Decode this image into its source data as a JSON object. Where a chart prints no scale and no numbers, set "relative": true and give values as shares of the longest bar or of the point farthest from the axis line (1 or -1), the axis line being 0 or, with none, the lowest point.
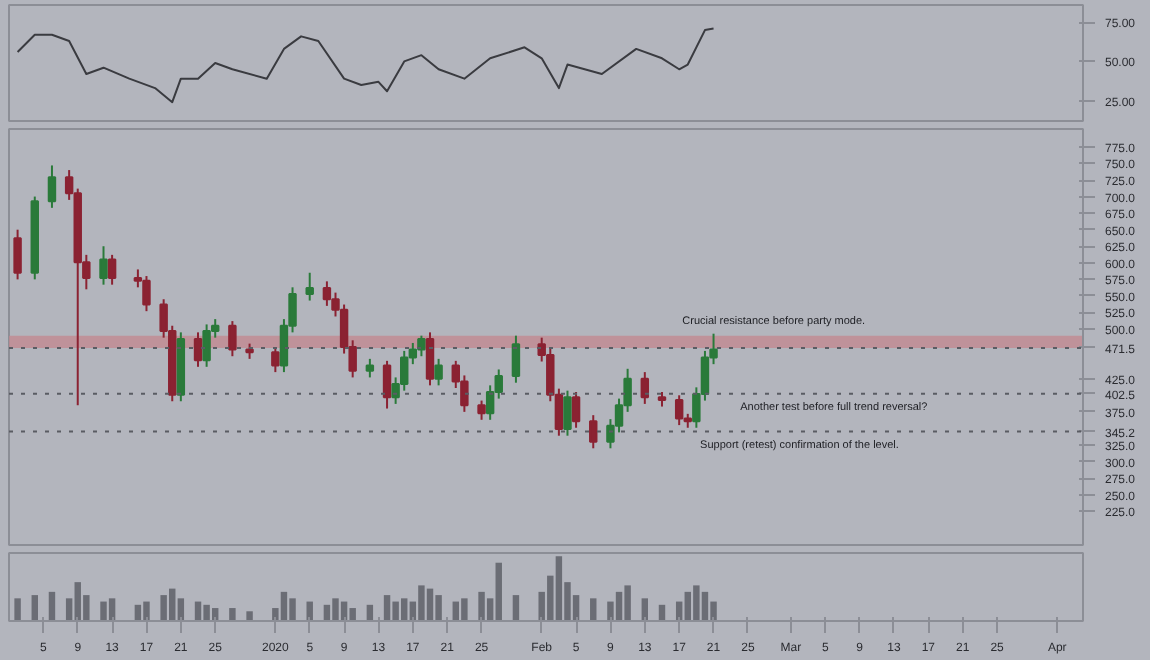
{
  "chart_data": [
    {
      "type": "line",
      "x": [
        "2019-12-02",
        "2019-12-04",
        "2019-12-06",
        "2019-12-08",
        "2019-12-10",
        "2019-12-12",
        "2019-12-15",
        "2019-12-18",
        "2019-12-20",
        "2019-12-21",
        "2019-12-23",
        "2019-12-25",
        "2019-12-27",
        "2019-12-31",
        "2020-01-02",
        "2020-01-04",
        "2020-01-06",
        "2020-01-09",
        "2020-01-11",
        "2020-01-13",
        "2020-01-14",
        "2020-01-16",
        "2020-01-18",
        "2020-01-20",
        "2020-01-23",
        "2020-01-26",
        "2020-01-30",
        "2020-02-01",
        "2020-02-03",
        "2020-02-04",
        "2020-02-08",
        "2020-02-12",
        "2020-02-15",
        "2020-02-17",
        "2020-02-18",
        "2020-02-20",
        "2020-02-21"
      ],
      "series": [
        {
          "color": "#3a3b40",
          "values": [
            56,
            67,
            67,
            63,
            42,
            46,
            39,
            33,
            24,
            39,
            39,
            49,
            45,
            39,
            58,
            66,
            63,
            39,
            35,
            37,
            31,
            50,
            54,
            45,
            39,
            52,
            59,
            52,
            33,
            48,
            42,
            58,
            52,
            45,
            48,
            70,
            71
          ]
        }
      ],
      "xlim": [
        "2019-12-01",
        "2020-04-04"
      ],
      "ylim": [
        12,
        86
      ],
      "yticks": [
        {
          "value": 25,
          "label": "25.00"
        },
        {
          "value": 50,
          "label": "50.00"
        },
        {
          "value": 75,
          "label": "75.00"
        }
      ],
      "tick_labels": "y",
      "grid": false
    },
    {
      "type": "candlestick",
      "x": [
        "2019-12-02",
        "2019-12-04",
        "2019-12-06",
        "2019-12-08",
        "2019-12-09",
        "2019-12-10",
        "2019-12-12",
        "2019-12-13",
        "2019-12-16",
        "2019-12-17",
        "2019-12-19",
        "2019-12-20",
        "2019-12-21",
        "2019-12-23",
        "2019-12-24",
        "2019-12-25",
        "2019-12-27",
        "2019-12-29",
        "2020-01-01",
        "2020-01-02",
        "2020-01-03",
        "2020-01-05",
        "2020-01-07",
        "2020-01-08",
        "2020-01-09",
        "2020-01-10",
        "2020-01-12",
        "2020-01-14",
        "2020-01-15",
        "2020-01-16",
        "2020-01-17",
        "2020-01-18",
        "2020-01-19",
        "2020-01-20",
        "2020-01-22",
        "2020-01-23",
        "2020-01-25",
        "2020-01-26",
        "2020-01-27",
        "2020-01-29",
        "2020-02-01",
        "2020-02-02",
        "2020-02-03",
        "2020-02-04",
        "2020-02-05",
        "2020-02-07",
        "2020-02-09",
        "2020-02-10",
        "2020-02-11",
        "2020-02-13",
        "2020-02-15",
        "2020-02-17",
        "2020-02-18",
        "2020-02-19",
        "2020-02-20",
        "2020-02-21"
      ],
      "ohlc": [
        [
          637,
          650,
          575,
          585
        ],
        [
          585,
          700,
          575,
          693
        ],
        [
          693,
          747,
          683,
          729
        ],
        [
          729,
          740,
          695,
          705
        ],
        [
          705,
          712,
          385,
          601
        ],
        [
          601,
          612,
          560,
          577
        ],
        [
          577,
          625,
          567,
          605
        ],
        [
          605,
          612,
          567,
          577
        ],
        [
          577,
          590,
          563,
          573
        ],
        [
          573,
          580,
          527,
          537
        ],
        [
          537,
          545,
          487,
          497
        ],
        [
          497,
          505,
          391,
          401
        ],
        [
          401,
          495,
          391,
          485
        ],
        [
          485,
          495,
          443,
          453
        ],
        [
          453,
          507,
          443,
          497
        ],
        [
          497,
          515,
          487,
          505
        ],
        [
          505,
          512,
          459,
          469
        ],
        [
          469,
          478,
          455,
          465
        ],
        [
          465,
          472,
          435,
          445
        ],
        [
          445,
          515,
          435,
          505
        ],
        [
          505,
          563,
          495,
          553
        ],
        [
          553,
          585,
          543,
          562
        ],
        [
          562,
          572,
          535,
          545
        ],
        [
          545,
          555,
          519,
          529
        ],
        [
          529,
          537,
          463,
          473
        ],
        [
          473,
          483,
          427,
          437
        ],
        [
          437,
          455,
          427,
          445
        ],
        [
          445,
          452,
          380,
          397
        ],
        [
          397,
          427,
          387,
          417
        ],
        [
          417,
          467,
          407,
          457
        ],
        [
          457,
          479,
          447,
          469
        ],
        [
          469,
          490,
          459,
          485
        ],
        [
          485,
          495,
          415,
          425
        ],
        [
          425,
          455,
          415,
          445
        ],
        [
          445,
          452,
          411,
          421
        ],
        [
          421,
          430,
          375,
          385
        ],
        [
          385,
          392,
          363,
          373
        ],
        [
          373,
          415,
          363,
          405
        ],
        [
          405,
          439,
          395,
          429
        ],
        [
          429,
          490,
          419,
          477
        ],
        [
          477,
          487,
          451,
          461
        ],
        [
          461,
          470,
          391,
          401
        ],
        [
          401,
          410,
          339,
          349
        ],
        [
          349,
          407,
          339,
          397
        ],
        [
          397,
          405,
          351,
          361
        ],
        [
          361,
          370,
          320,
          330
        ],
        [
          330,
          364,
          320,
          354
        ],
        [
          354,
          395,
          344,
          385
        ],
        [
          385,
          440,
          375,
          425
        ],
        [
          425,
          435,
          387,
          397
        ],
        [
          397,
          405,
          383,
          393
        ],
        [
          393,
          400,
          355,
          365
        ],
        [
          365,
          372,
          351,
          361
        ],
        [
          361,
          412,
          351,
          402
        ],
        [
          402,
          467,
          392,
          457
        ],
        [
          457,
          493,
          447,
          469
        ]
      ],
      "colors": [
        "#8b2232",
        "#2a7a3a",
        "#2a7a3a",
        "#8b2232",
        "#8b2232",
        "#8b2232",
        "#2a7a3a",
        "#8b2232",
        "#8b2232",
        "#8b2232",
        "#8b2232",
        "#8b2232",
        "#2a7a3a",
        "#8b2232",
        "#2a7a3a",
        "#2a7a3a",
        "#8b2232",
        "#8b2232",
        "#8b2232",
        "#2a7a3a",
        "#2a7a3a",
        "#2a7a3a",
        "#8b2232",
        "#8b2232",
        "#8b2232",
        "#8b2232",
        "#2a7a3a",
        "#8b2232",
        "#2a7a3a",
        "#2a7a3a",
        "#2a7a3a",
        "#2a7a3a",
        "#8b2232",
        "#2a7a3a",
        "#8b2232",
        "#8b2232",
        "#8b2232",
        "#2a7a3a",
        "#2a7a3a",
        "#2a7a3a",
        "#8b2232",
        "#8b2232",
        "#8b2232",
        "#2a7a3a",
        "#8b2232",
        "#8b2232",
        "#2a7a3a",
        "#2a7a3a",
        "#2a7a3a",
        "#8b2232",
        "#8b2232",
        "#8b2232",
        "#8b2232",
        "#2a7a3a",
        "#2a7a3a",
        "#2a7a3a"
      ],
      "xlim": [
        "2019-12-01",
        "2020-04-04"
      ],
      "ylim": [
        174,
        802
      ],
      "yticks": [
        {
          "value": 225,
          "label": "225.0"
        },
        {
          "value": 250,
          "label": "250.0"
        },
        {
          "value": 275,
          "label": "275.0"
        },
        {
          "value": 300,
          "label": "300.0"
        },
        {
          "value": 325,
          "label": "325.0"
        },
        {
          "value": 375,
          "label": "375.0"
        },
        {
          "value": 425,
          "label": "425.0"
        },
        {
          "value": 500,
          "label": "500.0"
        },
        {
          "value": 525,
          "label": "525.0"
        },
        {
          "value": 550,
          "label": "550.0"
        },
        {
          "value": 575,
          "label": "575.0"
        },
        {
          "value": 600,
          "label": "600.0"
        },
        {
          "value": 625,
          "label": "625.0"
        },
        {
          "value": 650,
          "label": "650.0"
        },
        {
          "value": 675,
          "label": "675.0"
        },
        {
          "value": 700,
          "label": "700.0"
        },
        {
          "value": 725,
          "label": "725.0"
        },
        {
          "value": 750,
          "label": "750.0"
        },
        {
          "value": 775,
          "label": "775.0"
        }
      ],
      "bands": [
        {
          "axis": "y",
          "from": 471.5,
          "to": 490,
          "color": "#c3878f"
        }
      ],
      "ref_lines": [
        {
          "axis": "y",
          "value": 471.5,
          "label": "471.5",
          "line_style": "dotted",
          "color": "#5a5c63"
        },
        {
          "axis": "y",
          "value": 402.5,
          "label": "402.5",
          "line_style": "dotted",
          "color": "#5a5c63"
        },
        {
          "axis": "y",
          "value": 345.2,
          "label": "345.2",
          "line_style": "dotted",
          "color": "#5a5c63"
        }
      ],
      "annotations": [
        {
          "text": "Crucial resistance before party mode.",
          "x": "2020-02-28",
          "y": 490
        },
        {
          "text": "Another test before full trend reversal?",
          "x": "2020-03-06",
          "y": 402.5
        },
        {
          "text": "Support (retest) confirmation of the level.",
          "x": "2020-03-02",
          "y": 345.2
        }
      ],
      "tick_labels": "y",
      "grid": false
    },
    {
      "type": "bar",
      "relative": true,
      "color": "#6b6d75",
      "x": [
        "2019-12-02",
        "2019-12-04",
        "2019-12-06",
        "2019-12-08",
        "2019-12-09",
        "2019-12-10",
        "2019-12-12",
        "2019-12-13",
        "2019-12-16",
        "2019-12-17",
        "2019-12-19",
        "2019-12-20",
        "2019-12-21",
        "2019-12-23",
        "2019-12-24",
        "2019-12-25",
        "2019-12-27",
        "2019-12-29",
        "2020-01-01",
        "2020-01-02",
        "2020-01-03",
        "2020-01-05",
        "2020-01-07",
        "2020-01-08",
        "2020-01-09",
        "2020-01-10",
        "2020-01-12",
        "2020-01-14",
        "2020-01-15",
        "2020-01-16",
        "2020-01-17",
        "2020-01-18",
        "2020-01-19",
        "2020-01-20",
        "2020-01-22",
        "2020-01-23",
        "2020-01-25",
        "2020-01-26",
        "2020-01-27",
        "2020-01-29",
        "2020-02-01",
        "2020-02-02",
        "2020-02-03",
        "2020-02-04",
        "2020-02-05",
        "2020-02-07",
        "2020-02-09",
        "2020-02-10",
        "2020-02-11",
        "2020-02-13",
        "2020-02-15",
        "2020-02-17",
        "2020-02-18",
        "2020-02-19",
        "2020-02-20",
        "2020-02-21"
      ],
      "values": [
        0.35,
        0.4,
        0.45,
        0.35,
        0.6,
        0.4,
        0.3,
        0.35,
        0.25,
        0.3,
        0.4,
        0.5,
        0.35,
        0.3,
        0.25,
        0.2,
        0.2,
        0.15,
        0.2,
        0.45,
        0.35,
        0.3,
        0.25,
        0.35,
        0.3,
        0.2,
        0.25,
        0.4,
        0.3,
        0.35,
        0.3,
        0.55,
        0.5,
        0.4,
        0.3,
        0.35,
        0.45,
        0.35,
        0.9,
        0.4,
        0.45,
        0.7,
        1,
        0.6,
        0.4,
        0.35,
        0.3,
        0.45,
        0.55,
        0.35,
        0.25,
        0.3,
        0.45,
        0.55,
        0.45,
        0.3
      ],
      "xlim": [
        "2019-12-01",
        "2020-04-04"
      ],
      "xticks": [
        {
          "value": "2019-12-05",
          "label": "5"
        },
        {
          "value": "2019-12-09",
          "label": "9"
        },
        {
          "value": "2019-12-13",
          "label": "13"
        },
        {
          "value": "2019-12-17",
          "label": "17"
        },
        {
          "value": "2019-12-21",
          "label": "21"
        },
        {
          "value": "2019-12-25",
          "label": "25"
        },
        {
          "value": "2020-01-01",
          "label": "2020"
        },
        {
          "value": "2020-01-05",
          "label": "5"
        },
        {
          "value": "2020-01-09",
          "label": "9"
        },
        {
          "value": "2020-01-13",
          "label": "13"
        },
        {
          "value": "2020-01-17",
          "label": "17"
        },
        {
          "value": "2020-01-21",
          "label": "21"
        },
        {
          "value": "2020-01-25",
          "label": "25"
        },
        {
          "value": "2020-02-01",
          "label": "Feb"
        },
        {
          "value": "2020-02-05",
          "label": "5"
        },
        {
          "value": "2020-02-09",
          "label": "9"
        },
        {
          "value": "2020-02-13",
          "label": "13"
        },
        {
          "value": "2020-02-17",
          "label": "17"
        },
        {
          "value": "2020-02-21",
          "label": "21"
        },
        {
          "value": "2020-02-25",
          "label": "25"
        },
        {
          "value": "2020-03-01",
          "label": "Mar"
        },
        {
          "value": "2020-03-05",
          "label": "5"
        },
        {
          "value": "2020-03-09",
          "label": "9"
        },
        {
          "value": "2020-03-13",
          "label": "13"
        },
        {
          "value": "2020-03-17",
          "label": "17"
        },
        {
          "value": "2020-03-21",
          "label": "21"
        },
        {
          "value": "2020-03-25",
          "label": "25"
        },
        {
          "value": "2020-04-01",
          "label": "Apr"
        }
      ],
      "tick_labels": "x",
      "grid": false
    }
  ]
}
